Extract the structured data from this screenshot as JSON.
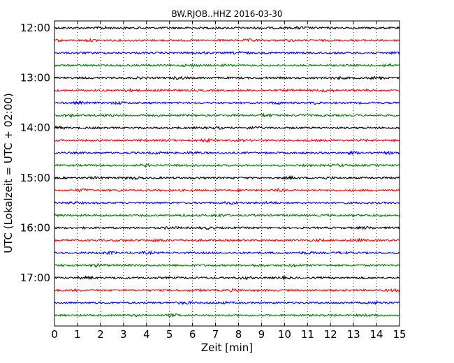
{
  "chart_data": {
    "type": "line",
    "title": "BW.RJOB..HHZ 2016-03-30",
    "xlabel": "Zeit  [min]",
    "ylabel": "UTC (Lokalzeit = UTC + 02:00)",
    "xlim": [
      0,
      15
    ],
    "xticks": [
      "0",
      "1",
      "2",
      "3",
      "4",
      "5",
      "6",
      "7",
      "8",
      "9",
      "10",
      "11",
      "12",
      "13",
      "14",
      "15"
    ],
    "yticks": [
      "12:00",
      "13:00",
      "14:00",
      "15:00",
      "16:00",
      "17:00"
    ],
    "grid": "vertical dotted at each minute",
    "trace_interval_minutes": 15,
    "colors_cycle": [
      "#000000",
      "#ff0000",
      "#0000ff",
      "#008000"
    ],
    "series": [
      {
        "start": "12:00",
        "color": "#000000"
      },
      {
        "start": "12:15",
        "color": "#ff0000"
      },
      {
        "start": "12:30",
        "color": "#0000ff"
      },
      {
        "start": "12:45",
        "color": "#008000"
      },
      {
        "start": "13:00",
        "color": "#000000"
      },
      {
        "start": "13:15",
        "color": "#ff0000"
      },
      {
        "start": "13:30",
        "color": "#0000ff"
      },
      {
        "start": "13:45",
        "color": "#008000"
      },
      {
        "start": "14:00",
        "color": "#000000"
      },
      {
        "start": "14:15",
        "color": "#ff0000"
      },
      {
        "start": "14:30",
        "color": "#0000ff"
      },
      {
        "start": "14:45",
        "color": "#008000"
      },
      {
        "start": "15:00",
        "color": "#000000"
      },
      {
        "start": "15:15",
        "color": "#ff0000"
      },
      {
        "start": "15:30",
        "color": "#0000ff"
      },
      {
        "start": "15:45",
        "color": "#008000"
      },
      {
        "start": "16:00",
        "color": "#000000"
      },
      {
        "start": "16:15",
        "color": "#ff0000"
      },
      {
        "start": "16:30",
        "color": "#0000ff"
      },
      {
        "start": "16:45",
        "color": "#008000"
      },
      {
        "start": "17:00",
        "color": "#000000"
      },
      {
        "start": "17:15",
        "color": "#ff0000"
      },
      {
        "start": "17:30",
        "color": "#0000ff"
      },
      {
        "start": "17:45",
        "color": "#008000"
      }
    ]
  }
}
